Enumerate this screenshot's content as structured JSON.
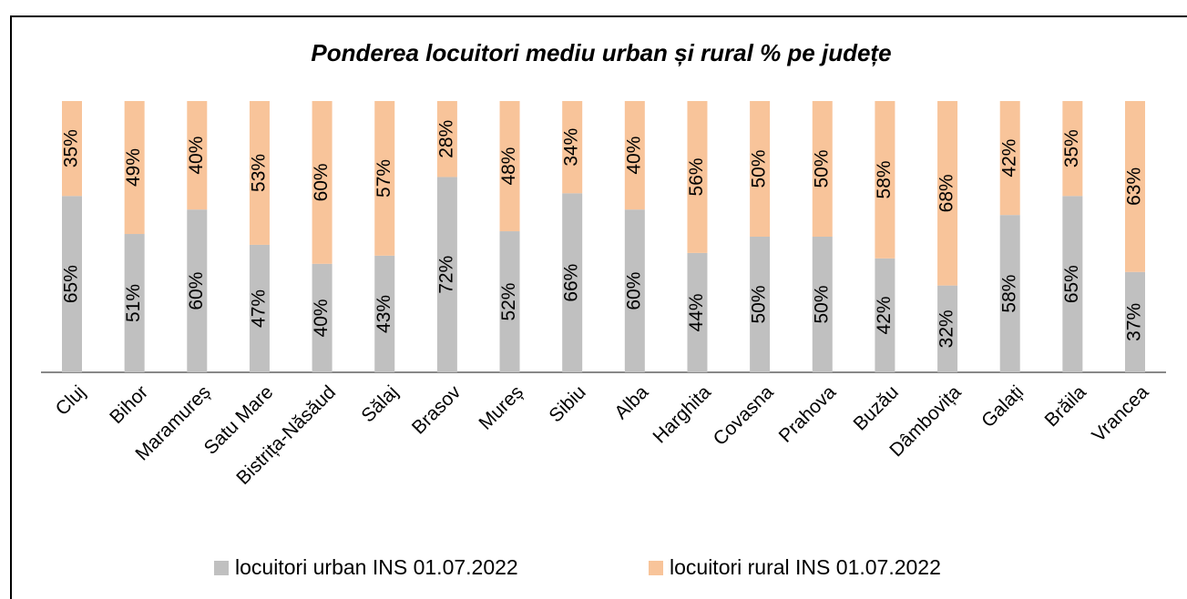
{
  "chart_data": {
    "type": "stacked_bar",
    "title": "Ponderea locuitori mediu urban și rural % pe județe",
    "categories": [
      "Cluj",
      "Bihor",
      "Maramureș",
      "Satu Mare",
      "Bistrița-Năsăud",
      "Sălaj",
      "Brasov",
      "Mureș",
      "Sibiu",
      "Alba",
      "Harghita",
      "Covasna",
      "Prahova",
      "Buzău",
      "Dâmbovița",
      "Galați",
      "Brăila",
      "Vrancea"
    ],
    "series": [
      {
        "name": "locuitori urban INS 01.07.2022",
        "color": "#c0c0c0",
        "values": [
          65,
          51,
          60,
          47,
          40,
          43,
          72,
          52,
          66,
          60,
          44,
          50,
          50,
          42,
          32,
          58,
          65,
          37
        ],
        "value_labels": [
          "65%",
          "51%",
          "60%",
          "47%",
          "40%",
          "43%",
          "72%",
          "52%",
          "66%",
          "60%",
          "44%",
          "50%",
          "50%",
          "42%",
          "32%",
          "58%",
          "65%",
          "37%"
        ]
      },
      {
        "name": "locuitori rural INS 01.07.2022",
        "color": "#f8c49a",
        "values": [
          35,
          49,
          40,
          53,
          60,
          57,
          28,
          48,
          34,
          40,
          56,
          50,
          50,
          58,
          68,
          42,
          35,
          63
        ],
        "value_labels": [
          "35%",
          "49%",
          "40%",
          "53%",
          "60%",
          "57%",
          "28%",
          "48%",
          "34%",
          "40%",
          "56%",
          "50%",
          "50%",
          "58%",
          "68%",
          "42%",
          "35%",
          "63%"
        ]
      }
    ],
    "ylim": [
      0,
      100
    ],
    "legend": "bottom"
  }
}
